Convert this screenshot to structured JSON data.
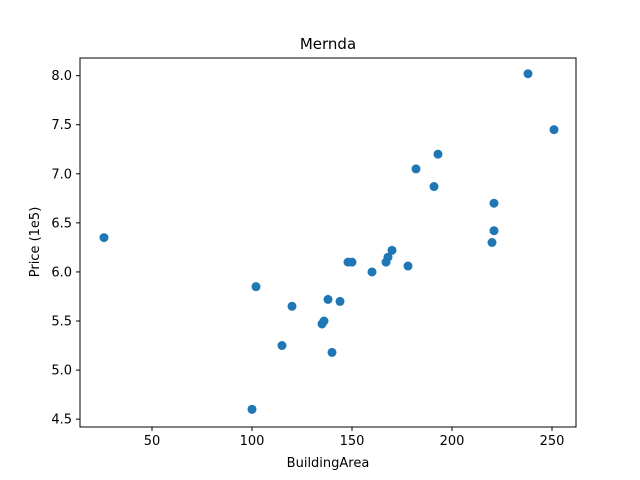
{
  "chart_data": {
    "type": "scatter",
    "title": "Mernda",
    "xlabel": "BuildingArea",
    "ylabel": "Price (1e5)",
    "xlim": [
      14,
      262
    ],
    "ylim": [
      4.42,
      8.18
    ],
    "xticks": [
      50,
      100,
      150,
      200,
      250
    ],
    "yticks": [
      4.5,
      5.0,
      5.5,
      6.0,
      6.5,
      7.0,
      7.5,
      8.0
    ],
    "xtick_labels": [
      "50",
      "100",
      "150",
      "200",
      "250"
    ],
    "ytick_labels": [
      "4.5",
      "5.0",
      "5.5",
      "6.0",
      "6.5",
      "7.0",
      "7.5",
      "8.0"
    ],
    "grid": false,
    "marker_color": "#1f77b4",
    "points": [
      {
        "x": 26,
        "y": 6.35
      },
      {
        "x": 100,
        "y": 4.6
      },
      {
        "x": 102,
        "y": 5.85
      },
      {
        "x": 115,
        "y": 5.25
      },
      {
        "x": 120,
        "y": 5.65
      },
      {
        "x": 135,
        "y": 5.47
      },
      {
        "x": 136,
        "y": 5.5
      },
      {
        "x": 138,
        "y": 5.72
      },
      {
        "x": 140,
        "y": 5.18
      },
      {
        "x": 144,
        "y": 5.7
      },
      {
        "x": 148,
        "y": 6.1
      },
      {
        "x": 150,
        "y": 6.1
      },
      {
        "x": 160,
        "y": 6.0
      },
      {
        "x": 167,
        "y": 6.1
      },
      {
        "x": 168,
        "y": 6.15
      },
      {
        "x": 170,
        "y": 6.22
      },
      {
        "x": 178,
        "y": 6.06
      },
      {
        "x": 182,
        "y": 7.05
      },
      {
        "x": 191,
        "y": 6.87
      },
      {
        "x": 193,
        "y": 7.2
      },
      {
        "x": 220,
        "y": 6.3
      },
      {
        "x": 221,
        "y": 6.42
      },
      {
        "x": 221,
        "y": 6.7
      },
      {
        "x": 238,
        "y": 8.02
      },
      {
        "x": 251,
        "y": 7.45
      }
    ]
  }
}
